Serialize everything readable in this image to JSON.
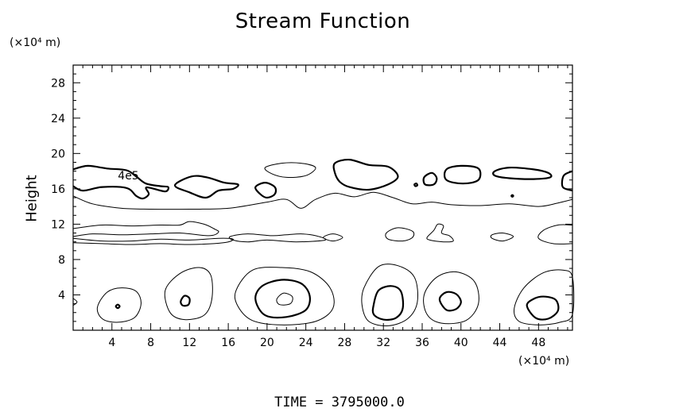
{
  "chart_data": {
    "type": "contour",
    "title": "Stream Function",
    "xlabel": "",
    "ylabel": "Height",
    "x_unit": "(×10⁴ m)",
    "y_unit": "(×10⁴ m)",
    "xlim": [
      0,
      51.5
    ],
    "ylim": [
      0,
      30
    ],
    "x_ticks": [
      4,
      8,
      12,
      16,
      20,
      24,
      28,
      32,
      36,
      40,
      44,
      48
    ],
    "y_ticks": [
      4,
      8,
      12,
      16,
      20,
      24,
      28
    ],
    "contour_label": {
      "text": "4e5",
      "x": 5.7,
      "y": 17.5
    },
    "time_label": "TIME = 3795000.0",
    "thin_contours": [
      [
        [
          0,
          15.2
        ],
        [
          2,
          14.3
        ],
        [
          5,
          13.8
        ],
        [
          8,
          13.7
        ],
        [
          12,
          13.7
        ],
        [
          16,
          13.8
        ],
        [
          20,
          14.5
        ],
        [
          22,
          14.8
        ],
        [
          23.5,
          13.8
        ],
        [
          25,
          14.8
        ],
        [
          27,
          15.5
        ],
        [
          29,
          15.1
        ],
        [
          31,
          15.6
        ],
        [
          33,
          15.0
        ],
        [
          35,
          14.3
        ],
        [
          37,
          14.5
        ],
        [
          39,
          14.2
        ],
        [
          42,
          14.1
        ],
        [
          45,
          14.3
        ],
        [
          48,
          14.0
        ],
        [
          50,
          14.4
        ],
        [
          51.5,
          14.8
        ]
      ],
      [
        [
          0,
          11.5
        ],
        [
          3,
          11.9
        ],
        [
          6,
          11.8
        ],
        [
          9,
          11.9
        ],
        [
          11,
          11.9
        ],
        [
          12,
          12.3
        ],
        [
          13.5,
          12.0
        ],
        [
          14.5,
          11.5
        ],
        [
          15,
          11.1
        ],
        [
          14,
          10.7
        ],
        [
          11,
          11.0
        ],
        [
          8,
          10.9
        ],
        [
          5,
          10.8
        ],
        [
          2,
          10.9
        ],
        [
          0,
          10.6
        ]
      ],
      [
        [
          0,
          10.4
        ],
        [
          3,
          10.1
        ],
        [
          6,
          10.1
        ],
        [
          9,
          10.3
        ],
        [
          12,
          10.2
        ],
        [
          15,
          10.4
        ],
        [
          16.5,
          10.3
        ],
        [
          15.5,
          9.9
        ],
        [
          12,
          9.7
        ],
        [
          9,
          9.8
        ],
        [
          6,
          9.7
        ],
        [
          3,
          9.8
        ],
        [
          0,
          9.9
        ]
      ],
      [
        [
          16.2,
          10.6
        ],
        [
          18,
          10.9
        ],
        [
          20.5,
          10.7
        ],
        [
          22,
          10.8
        ],
        [
          23.5,
          10.9
        ],
        [
          25,
          10.7
        ],
        [
          26,
          10.2
        ],
        [
          23,
          10.0
        ],
        [
          20,
          10.2
        ],
        [
          18,
          10.0
        ],
        [
          16.5,
          10.2
        ],
        [
          16.2,
          10.6
        ]
      ],
      [
        [
          19.8,
          18.4
        ],
        [
          21.5,
          18.9
        ],
        [
          23.5,
          18.9
        ],
        [
          25,
          18.4
        ],
        [
          24,
          17.5
        ],
        [
          22,
          17.3
        ],
        [
          20.5,
          17.7
        ],
        [
          19.8,
          18.4
        ]
      ],
      [
        [
          25.8,
          10.5
        ],
        [
          26.8,
          10.9
        ],
        [
          27.8,
          10.5
        ],
        [
          26.8,
          10.1
        ],
        [
          25.8,
          10.5
        ]
      ],
      [
        [
          32.3,
          11.0
        ],
        [
          33.5,
          11.6
        ],
        [
          35,
          11.2
        ],
        [
          35,
          10.5
        ],
        [
          34,
          10.1
        ],
        [
          32.5,
          10.3
        ],
        [
          32.3,
          11.0
        ]
      ],
      [
        [
          36.5,
          10.5
        ],
        [
          37.2,
          11.3
        ],
        [
          37.6,
          12.0
        ],
        [
          38.2,
          11.8
        ],
        [
          38.0,
          11.0
        ],
        [
          38.8,
          10.7
        ],
        [
          39.2,
          10.1
        ],
        [
          38.2,
          10.0
        ],
        [
          36.8,
          10.2
        ],
        [
          36.5,
          10.5
        ]
      ],
      [
        [
          43.2,
          10.8
        ],
        [
          44.3,
          11.0
        ],
        [
          45.4,
          10.6
        ],
        [
          44.3,
          10.1
        ],
        [
          43.2,
          10.4
        ],
        [
          43.2,
          10.8
        ]
      ],
      [
        [
          51.5,
          11.9
        ],
        [
          50,
          11.9
        ],
        [
          48.5,
          11.3
        ],
        [
          48,
          10.4
        ],
        [
          49.5,
          9.8
        ],
        [
          51.5,
          9.8
        ]
      ],
      [
        [
          2.5,
          2.6
        ],
        [
          3.5,
          4.3
        ],
        [
          5,
          4.8
        ],
        [
          6.5,
          4.4
        ],
        [
          7,
          3.0
        ],
        [
          6.3,
          1.4
        ],
        [
          4.5,
          0.9
        ],
        [
          3,
          1.3
        ],
        [
          2.5,
          2.6
        ]
      ],
      [
        [
          9.5,
          4.5
        ],
        [
          11,
          6.4
        ],
        [
          13,
          7.1
        ],
        [
          14.2,
          6.2
        ],
        [
          14.3,
          3.5
        ],
        [
          13.5,
          1.7
        ],
        [
          11.5,
          1.2
        ],
        [
          10,
          2.0
        ],
        [
          9.5,
          4.5
        ]
      ],
      [
        [
          16.8,
          4.5
        ],
        [
          18.5,
          6.8
        ],
        [
          21.5,
          7.1
        ],
        [
          24.5,
          6.6
        ],
        [
          26.5,
          4.8
        ],
        [
          26.8,
          2.5
        ],
        [
          25,
          1.0
        ],
        [
          21.5,
          0.6
        ],
        [
          18.5,
          1.1
        ],
        [
          17,
          2.7
        ],
        [
          16.8,
          4.5
        ]
      ],
      [
        [
          30,
          4.8
        ],
        [
          31.5,
          7.2
        ],
        [
          33.5,
          7.3
        ],
        [
          35.2,
          6.0
        ],
        [
          35.5,
          3.2
        ],
        [
          34.5,
          1.3
        ],
        [
          32.5,
          0.5
        ],
        [
          30.5,
          1.0
        ],
        [
          29.8,
          2.8
        ],
        [
          30,
          4.8
        ]
      ],
      [
        [
          36.2,
          4.0
        ],
        [
          37.5,
          6.0
        ],
        [
          39.5,
          6.6
        ],
        [
          41.4,
          5.5
        ],
        [
          41.8,
          3.0
        ],
        [
          40.5,
          1.1
        ],
        [
          38,
          0.8
        ],
        [
          36.5,
          1.8
        ],
        [
          36.2,
          4.0
        ]
      ],
      [
        [
          45.5,
          2.5
        ],
        [
          46.5,
          4.8
        ],
        [
          48.5,
          6.5
        ],
        [
          50.5,
          6.8
        ],
        [
          51.5,
          6.0
        ],
        [
          51.5,
          1.8
        ],
        [
          50.2,
          0.9
        ],
        [
          48,
          0.6
        ],
        [
          46,
          1.0
        ],
        [
          45.5,
          2.5
        ]
      ],
      [
        [
          21,
          3.5
        ],
        [
          21.7,
          4.2
        ],
        [
          22.6,
          3.8
        ],
        [
          22.4,
          3.0
        ],
        [
          21.3,
          2.9
        ],
        [
          21,
          3.5
        ]
      ],
      [
        [
          0,
          3.6
        ],
        [
          0.4,
          3.2
        ],
        [
          0,
          2.8
        ]
      ]
    ],
    "thick_contours": [
      [
        [
          0,
          18.2
        ],
        [
          1.5,
          18.6
        ],
        [
          3.5,
          18.3
        ],
        [
          5.5,
          18.1
        ],
        [
          6.5,
          17.4
        ],
        [
          7.5,
          16.6
        ],
        [
          9,
          16.3
        ],
        [
          9.8,
          16.2
        ],
        [
          9.5,
          15.7
        ],
        [
          8,
          16.1
        ],
        [
          7.5,
          16.1
        ],
        [
          7.8,
          15.4
        ],
        [
          7.2,
          14.9
        ],
        [
          6.5,
          15.2
        ],
        [
          5.5,
          16.1
        ],
        [
          3,
          16.2
        ],
        [
          1,
          15.8
        ],
        [
          0,
          16.3
        ]
      ],
      [
        [
          10.5,
          16.4
        ],
        [
          12.2,
          17.4
        ],
        [
          13.8,
          17.3
        ],
        [
          15.6,
          16.7
        ],
        [
          17.0,
          16.5
        ],
        [
          16.5,
          16.0
        ],
        [
          15,
          15.8
        ],
        [
          13.7,
          15.0
        ],
        [
          12,
          15.6
        ],
        [
          10.5,
          16.4
        ]
      ],
      [
        [
          18.8,
          16.2
        ],
        [
          19.8,
          16.7
        ],
        [
          20.8,
          16.2
        ],
        [
          20.8,
          15.4
        ],
        [
          20,
          15.0
        ],
        [
          19.3,
          15.4
        ],
        [
          18.8,
          16.2
        ]
      ],
      [
        [
          27,
          18.9
        ],
        [
          28.5,
          19.3
        ],
        [
          30.5,
          18.7
        ],
        [
          32.5,
          18.5
        ],
        [
          33.5,
          17.4
        ],
        [
          32.5,
          16.5
        ],
        [
          30.5,
          15.9
        ],
        [
          28.5,
          16.2
        ],
        [
          27.5,
          16.8
        ],
        [
          27,
          17.8
        ],
        [
          27,
          18.9
        ]
      ],
      [
        [
          36.2,
          17.3
        ],
        [
          37.0,
          17.8
        ],
        [
          37.5,
          17.2
        ],
        [
          37.2,
          16.5
        ],
        [
          36.3,
          16.5
        ],
        [
          36.2,
          17.3
        ]
      ],
      [
        [
          38.5,
          18.2
        ],
        [
          40,
          18.6
        ],
        [
          41.8,
          18.3
        ],
        [
          41.8,
          17.0
        ],
        [
          40.2,
          16.6
        ],
        [
          38.5,
          17.0
        ],
        [
          38.5,
          18.2
        ]
      ],
      [
        [
          43.5,
          18.0
        ],
        [
          45,
          18.4
        ],
        [
          47.5,
          18.2
        ],
        [
          49,
          17.8
        ],
        [
          49.2,
          17.3
        ],
        [
          47.5,
          17.1
        ],
        [
          45,
          17.2
        ],
        [
          43.5,
          17.5
        ],
        [
          43.5,
          18.0
        ]
      ],
      [
        [
          51.5,
          18.0
        ],
        [
          50.6,
          17.5
        ],
        [
          50.5,
          16.2
        ],
        [
          51.5,
          15.8
        ]
      ],
      [
        [
          4.4,
          2.7
        ],
        [
          4.6,
          2.9
        ],
        [
          4.8,
          2.7
        ],
        [
          4.6,
          2.5
        ],
        [
          4.4,
          2.7
        ]
      ],
      [
        [
          11.1,
          3.3
        ],
        [
          11.5,
          3.9
        ],
        [
          12,
          3.6
        ],
        [
          11.9,
          2.9
        ],
        [
          11.3,
          2.8
        ],
        [
          11.1,
          3.3
        ]
      ],
      [
        [
          18.8,
          3.5
        ],
        [
          19.5,
          5.0
        ],
        [
          21.5,
          5.7
        ],
        [
          23.5,
          5.3
        ],
        [
          24.4,
          3.9
        ],
        [
          24,
          2.3
        ],
        [
          22,
          1.5
        ],
        [
          19.8,
          1.7
        ],
        [
          18.8,
          3.5
        ]
      ],
      [
        [
          31,
          2.9
        ],
        [
          31.5,
          4.5
        ],
        [
          32.8,
          5.0
        ],
        [
          33.8,
          4.4
        ],
        [
          34,
          2.5
        ],
        [
          33.3,
          1.4
        ],
        [
          32,
          1.2
        ],
        [
          31,
          1.8
        ],
        [
          31,
          2.9
        ]
      ],
      [
        [
          37.8,
          3.5
        ],
        [
          38.5,
          4.3
        ],
        [
          39.5,
          4.1
        ],
        [
          40,
          3.2
        ],
        [
          39.5,
          2.4
        ],
        [
          38.5,
          2.3
        ],
        [
          37.8,
          3.5
        ]
      ],
      [
        [
          46.8,
          2.8
        ],
        [
          47.6,
          3.6
        ],
        [
          48.7,
          3.8
        ],
        [
          49.8,
          3.4
        ],
        [
          50,
          2.2
        ],
        [
          49,
          1.3
        ],
        [
          47.7,
          1.4
        ],
        [
          46.8,
          2.8
        ]
      ],
      [
        [
          35.2,
          16.5
        ],
        [
          35.4,
          16.6
        ],
        [
          35.5,
          16.4
        ],
        [
          35.3,
          16.3
        ],
        [
          35.2,
          16.5
        ]
      ],
      [
        [
          45.2,
          15.2
        ],
        [
          45.3,
          15.3
        ],
        [
          45.4,
          15.2
        ],
        [
          45.3,
          15.1
        ],
        [
          45.2,
          15.2
        ]
      ]
    ]
  }
}
